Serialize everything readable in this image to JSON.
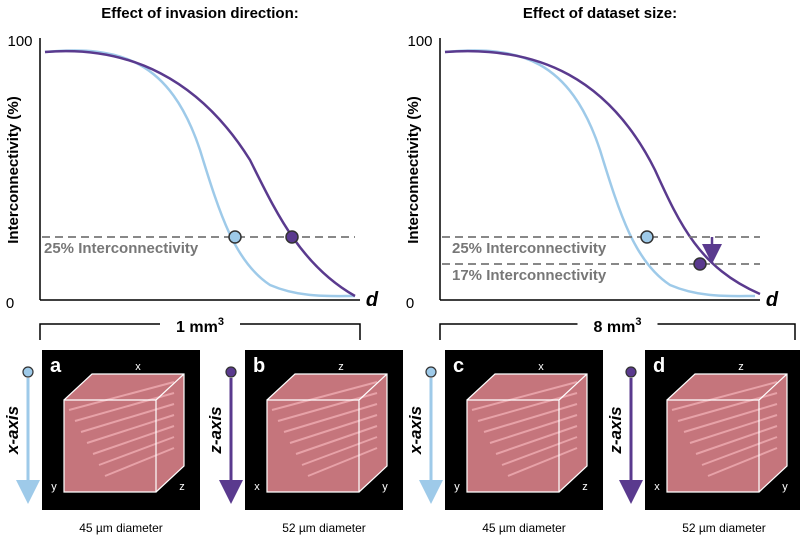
{
  "panels": [
    {
      "title": "Effect of invasion direction:",
      "y_label": "Interconnectivity (%)",
      "y_top": "100",
      "y_bottom": "0",
      "x_label": "d",
      "annotations": [
        "25% Interconnectivity"
      ],
      "volume": "1 mm",
      "volume_exp": "3"
    },
    {
      "title": "Effect of dataset size:",
      "y_label": "Interconnectivity (%)",
      "y_top": "100",
      "y_bottom": "0",
      "x_label": "d",
      "annotations": [
        "25% Interconnectivity",
        "17% Interconnectivity"
      ],
      "volume": "8 mm",
      "volume_exp": "3"
    }
  ],
  "images": [
    {
      "letter": "a",
      "axis": "x-axis",
      "corners": [
        "x",
        "y",
        "z"
      ],
      "caption": "45 µm diameter"
    },
    {
      "letter": "b",
      "axis": "z-axis",
      "corners": [
        "z",
        "x",
        "y"
      ],
      "caption": "52 µm diameter"
    },
    {
      "letter": "c",
      "axis": "x-axis",
      "corners": [
        "x",
        "y",
        "z"
      ],
      "caption": "45 µm diameter"
    },
    {
      "letter": "d",
      "axis": "z-axis",
      "corners": [
        "z",
        "x",
        "y"
      ],
      "caption": "52 µm diameter"
    }
  ]
}
